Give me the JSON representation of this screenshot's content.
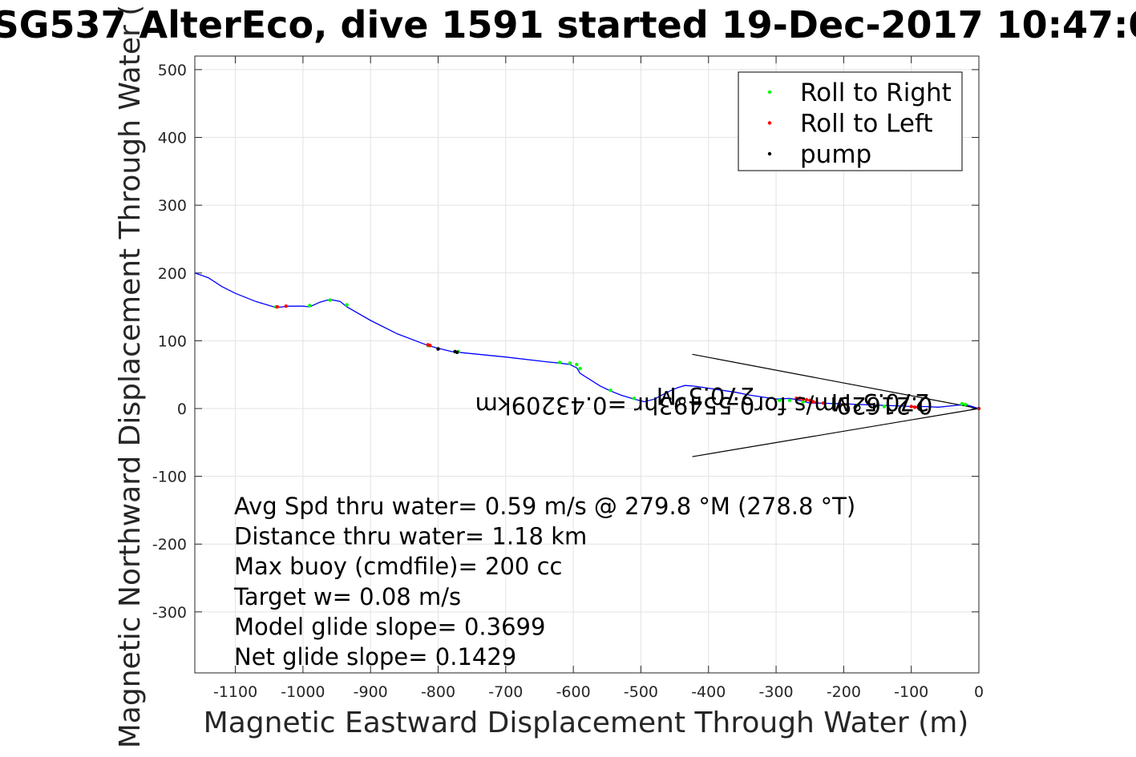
{
  "chart_data": {
    "type": "line",
    "title": "SG537 AlterEco, dive 1591 started 19-Dec-2017 10:47:0",
    "xlabel": "Magnetic Eastward Displacement Through Water (m)",
    "ylabel": "Magnetic Northward Displacement Through Water (",
    "xlim": [
      -1160,
      0
    ],
    "ylim": [
      -390,
      520
    ],
    "xticks": [
      -1100,
      -1000,
      -900,
      -800,
      -700,
      -600,
      -500,
      -400,
      -300,
      -200,
      -100,
      0
    ],
    "yticks": [
      -300,
      -200,
      -100,
      0,
      100,
      200,
      300,
      400,
      500
    ],
    "grid": true,
    "legend_position": "top-right",
    "colors": {
      "track": "#0000ff",
      "roll_right": "#00ff00",
      "roll_left": "#ff0000",
      "pump": "#000000",
      "current_arrow": "#000000"
    },
    "series": [
      {
        "name": "Roll to Right",
        "marker": "dot",
        "x": [
          -1040,
          -990,
          -960,
          -935,
          -815,
          -770,
          -620,
          -605,
          -595,
          -590,
          -545,
          -510,
          -295,
          -280,
          -260,
          -215,
          -180,
          -150,
          -140,
          -25,
          -20
        ],
        "y": [
          150,
          152,
          160,
          153,
          93,
          84,
          68,
          67,
          65,
          59,
          27,
          15,
          12,
          12,
          10,
          6,
          5,
          4,
          3,
          7,
          6
        ]
      },
      {
        "name": "Roll to Left",
        "marker": "dot",
        "x": [
          -1038,
          -1025,
          -815,
          -812,
          -800,
          -270,
          -265,
          -260,
          -255,
          -250,
          -245,
          -240,
          -230,
          -200,
          -100,
          -95,
          -90,
          0
        ],
        "y": [
          150,
          151,
          94,
          93,
          88,
          15,
          15,
          14,
          13,
          12,
          10,
          9,
          8,
          6,
          3,
          2,
          2,
          0
        ]
      },
      {
        "name": "pump",
        "marker": "dot",
        "x": [
          -800,
          -775,
          -772
        ],
        "y": [
          88,
          84,
          83
        ]
      }
    ],
    "track": {
      "x": [
        -1160,
        -1140,
        -1120,
        -1100,
        -1070,
        -1040,
        -1020,
        -1000,
        -990,
        -975,
        -960,
        -945,
        -935,
        -900,
        -860,
        -815,
        -800,
        -780,
        -770,
        -700,
        -640,
        -620,
        -605,
        -595,
        -590,
        -560,
        -545,
        -530,
        -510,
        -495,
        -480,
        -465,
        -455,
        -445,
        -435,
        -420,
        -400,
        -380,
        -360,
        -340,
        -320,
        -300,
        -280,
        -265,
        -250,
        -240,
        -200,
        -150,
        -120,
        -100,
        -80,
        -60,
        -40,
        -20,
        0
      ],
      "y": [
        200,
        193,
        180,
        170,
        158,
        149,
        151,
        151,
        150,
        157,
        161,
        158,
        150,
        130,
        110,
        93,
        89,
        84,
        83,
        76,
        69,
        67,
        65,
        60,
        52,
        33,
        26,
        20,
        14,
        10,
        14,
        22,
        27,
        31,
        34,
        33,
        30,
        27,
        24,
        20,
        17,
        14,
        15,
        12,
        8,
        8,
        7,
        5,
        4,
        3,
        3,
        2,
        4,
        6,
        0
      ]
    },
    "current_vector": {
      "tail_x": -424,
      "tail_y": 80,
      "wing_x": -424,
      "wing_y": -71,
      "head_x": 0,
      "head_y": 0
    },
    "annotations": {
      "current_speed_label": "0.21629m/s for0.55493hr =0.43209km",
      "heading_label_1": "270.5°M",
      "heading_label_2": "270.5°M",
      "stats": [
        "Avg Spd thru water=  0.59 m/s @ 279.8 °M (278.8 °T)",
        "Distance thru water=  1.18 km",
        "Max buoy (cmdfile)= 200 cc",
        "Target w= 0.08 m/s",
        "Model glide slope= 0.3699",
        "Net glide slope= 0.1429"
      ]
    }
  }
}
